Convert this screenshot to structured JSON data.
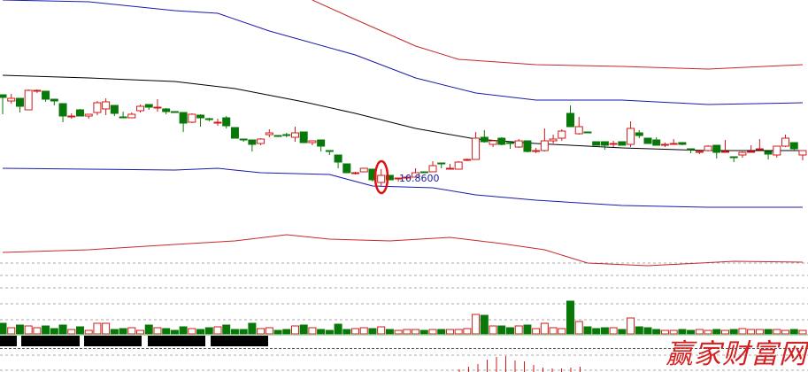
{
  "chart_data": {
    "type": "candlestick",
    "title": "",
    "price_annotation": {
      "label": "10.8600",
      "candle_index": 44,
      "highlight": "red-ellipse"
    },
    "colors": {
      "up": "#d01818",
      "down": "#087808",
      "upper_outer_band": "#c82828",
      "upper_inner_band": "#1a1aa8",
      "middle_line": "#000000",
      "lower_inner_band": "#1a1aa8",
      "lower_outer_band": "#c82828",
      "annotation_text": "#2020a0"
    },
    "candles_ohlc": [
      [
        11.82,
        11.79,
        11.82,
        11.6
      ],
      [
        11.75,
        11.78,
        11.83,
        11.72
      ],
      [
        11.78,
        11.69,
        11.78,
        11.62
      ],
      [
        11.65,
        11.87,
        11.88,
        11.65
      ],
      [
        11.86,
        11.87,
        11.88,
        11.84
      ],
      [
        11.86,
        11.77,
        11.86,
        11.74
      ],
      [
        11.77,
        11.75,
        11.77,
        11.7
      ],
      [
        11.72,
        11.58,
        11.72,
        11.51
      ],
      [
        11.57,
        11.58,
        11.61,
        11.55
      ],
      [
        11.65,
        11.58,
        11.66,
        11.58
      ],
      [
        11.58,
        11.6,
        11.6,
        11.55
      ],
      [
        11.62,
        11.73,
        11.75,
        11.59
      ],
      [
        11.66,
        11.74,
        11.78,
        11.59
      ],
      [
        11.7,
        11.61,
        11.7,
        11.58
      ],
      [
        11.57,
        11.56,
        11.63,
        11.56
      ],
      [
        11.56,
        11.6,
        11.62,
        11.56
      ],
      [
        11.64,
        11.69,
        11.71,
        11.62
      ],
      [
        11.71,
        11.68,
        11.71,
        11.65
      ],
      [
        11.67,
        11.68,
        11.77,
        11.63
      ],
      [
        11.66,
        11.63,
        11.67,
        11.6
      ],
      [
        11.63,
        11.62,
        11.63,
        11.62
      ],
      [
        11.62,
        11.5,
        11.62,
        11.4
      ],
      [
        11.51,
        11.6,
        11.61,
        11.5
      ],
      [
        11.59,
        11.56,
        11.6,
        11.46
      ],
      [
        11.55,
        11.54,
        11.56,
        11.52
      ],
      [
        11.5,
        11.51,
        11.55,
        11.47
      ],
      [
        11.56,
        11.47,
        11.58,
        11.44
      ],
      [
        11.45,
        11.33,
        11.45,
        11.33
      ],
      [
        11.32,
        11.31,
        11.32,
        11.29
      ],
      [
        11.31,
        11.26,
        11.31,
        11.18
      ],
      [
        11.27,
        11.32,
        11.33,
        11.25
      ],
      [
        11.37,
        11.39,
        11.43,
        11.34
      ],
      [
        11.36,
        11.35,
        11.36,
        11.35
      ],
      [
        11.37,
        11.36,
        11.39,
        11.34
      ],
      [
        11.34,
        11.39,
        11.46,
        11.29
      ],
      [
        11.4,
        11.28,
        11.4,
        11.28
      ],
      [
        11.28,
        11.3,
        11.3,
        11.25
      ],
      [
        11.31,
        11.24,
        11.31,
        11.18
      ],
      [
        11.19,
        11.18,
        11.19,
        11.14
      ],
      [
        11.14,
        11.06,
        11.14,
        10.99
      ],
      [
        11.04,
        10.94,
        11.04,
        10.94
      ],
      [
        10.93,
        10.94,
        10.95,
        10.92
      ],
      [
        10.95,
        10.99,
        10.99,
        10.95
      ],
      [
        10.98,
        10.86,
        10.98,
        10.84
      ],
      [
        10.83,
        10.91,
        10.98,
        10.79
      ],
      [
        10.91,
        10.86,
        10.91,
        10.86
      ],
      [
        10.87,
        10.88,
        10.88,
        10.84
      ],
      [
        10.88,
        10.89,
        10.91,
        10.86
      ],
      [
        10.89,
        10.94,
        10.99,
        10.89
      ],
      [
        10.95,
        10.94,
        10.95,
        10.94
      ],
      [
        10.95,
        11.02,
        11.07,
        10.95
      ],
      [
        11.05,
        11.04,
        11.05,
        10.99
      ],
      [
        10.98,
        10.99,
        11.04,
        10.98
      ],
      [
        10.98,
        11.06,
        11.07,
        10.98
      ],
      [
        11.08,
        11.09,
        11.1,
        11.07
      ],
      [
        11.09,
        11.33,
        11.4,
        11.09
      ],
      [
        11.34,
        11.29,
        11.42,
        11.28
      ],
      [
        11.26,
        11.3,
        11.31,
        11.23
      ],
      [
        11.33,
        11.26,
        11.34,
        11.25
      ],
      [
        11.28,
        11.27,
        11.29,
        11.21
      ],
      [
        11.23,
        11.3,
        11.32,
        11.22
      ],
      [
        11.3,
        11.18,
        11.3,
        11.17
      ],
      [
        11.18,
        11.19,
        11.22,
        11.16
      ],
      [
        11.19,
        11.3,
        11.44,
        11.18
      ],
      [
        11.3,
        11.32,
        11.37,
        11.27
      ],
      [
        11.33,
        11.41,
        11.43,
        11.3
      ],
      [
        11.61,
        11.46,
        11.7,
        11.46
      ],
      [
        11.38,
        11.46,
        11.57,
        11.37
      ],
      [
        11.4,
        11.39,
        11.4,
        11.39
      ],
      [
        11.29,
        11.25,
        11.29,
        11.25
      ],
      [
        11.29,
        11.25,
        11.29,
        11.2
      ],
      [
        11.26,
        11.27,
        11.3,
        11.23
      ],
      [
        11.29,
        11.25,
        11.29,
        11.25
      ],
      [
        11.26,
        11.44,
        11.52,
        11.23
      ],
      [
        11.39,
        11.36,
        11.42,
        11.33
      ],
      [
        11.33,
        11.27,
        11.33,
        11.27
      ],
      [
        11.31,
        11.25,
        11.34,
        11.25
      ],
      [
        11.25,
        11.26,
        11.28,
        11.23
      ],
      [
        11.26,
        11.27,
        11.32,
        11.26
      ],
      [
        11.28,
        11.26,
        11.28,
        11.25
      ],
      [
        11.21,
        11.2,
        11.21,
        11.16
      ],
      [
        11.17,
        11.18,
        11.19,
        11.15
      ],
      [
        11.19,
        11.24,
        11.25,
        11.18
      ],
      [
        11.25,
        11.17,
        11.25,
        11.1
      ],
      [
        11.17,
        11.18,
        11.31,
        11.17
      ],
      [
        11.12,
        11.11,
        11.12,
        11.06
      ],
      [
        11.14,
        11.17,
        11.18,
        11.11
      ],
      [
        11.17,
        11.18,
        11.25,
        11.17
      ],
      [
        11.2,
        11.21,
        11.32,
        11.2
      ],
      [
        11.18,
        11.15,
        11.18,
        11.09
      ],
      [
        11.14,
        11.24,
        11.24,
        11.11
      ],
      [
        11.24,
        11.33,
        11.37,
        11.23
      ],
      [
        11.28,
        11.21,
        11.28,
        11.19
      ],
      [
        11.14,
        11.19,
        11.19,
        11.08
      ]
    ],
    "volumes": [
      12,
      7,
      10,
      9,
      7,
      9,
      6,
      10,
      5,
      8,
      4,
      12,
      12,
      5,
      6,
      7,
      4,
      10,
      7,
      6,
      4,
      8,
      6,
      5,
      7,
      8,
      10,
      5,
      5,
      12,
      6,
      7,
      4,
      5,
      9,
      10,
      7,
      5,
      4,
      11,
      5,
      6,
      7,
      6,
      8,
      5,
      4,
      5,
      5,
      4,
      5,
      5,
      5,
      5,
      6,
      22,
      21,
      9,
      9,
      7,
      9,
      10,
      6,
      12,
      7,
      6,
      37,
      14,
      8,
      6,
      7,
      7,
      5,
      18,
      8,
      7,
      5,
      4,
      4,
      5,
      4,
      5,
      4,
      5,
      4,
      5,
      6,
      5,
      5,
      5,
      5,
      4,
      5,
      4
    ],
    "bands": [
      {
        "key": "upper_outer",
        "color": "#c82828",
        "points": [
          [
            36,
            12.89
          ],
          [
            41,
            12.67
          ],
          [
            48,
            12.37
          ],
          [
            53,
            12.22
          ],
          [
            62,
            12.16
          ],
          [
            72,
            12.14
          ],
          [
            82,
            12.11
          ],
          [
            93,
            12.16
          ]
        ]
      },
      {
        "key": "upper_inner",
        "color": "#1a1aa8",
        "points": [
          [
            0,
            12.89
          ],
          [
            10,
            12.87
          ],
          [
            20,
            12.77
          ],
          [
            25,
            12.74
          ],
          [
            31,
            12.54
          ],
          [
            41,
            12.27
          ],
          [
            48,
            12.01
          ],
          [
            55,
            11.84
          ],
          [
            62,
            11.76
          ],
          [
            72,
            11.76
          ],
          [
            82,
            11.71
          ],
          [
            93,
            11.73
          ]
        ]
      },
      {
        "key": "middle",
        "color": "#000000",
        "points": [
          [
            0,
            12.04
          ],
          [
            10,
            12.01
          ],
          [
            20,
            11.97
          ],
          [
            27,
            11.89
          ],
          [
            35,
            11.74
          ],
          [
            41,
            11.61
          ],
          [
            48,
            11.44
          ],
          [
            55,
            11.32
          ],
          [
            62,
            11.27
          ],
          [
            72,
            11.22
          ],
          [
            82,
            11.19
          ],
          [
            93,
            11.19
          ]
        ]
      },
      {
        "key": "lower_inner",
        "color": "#1a1aa8",
        "points": [
          [
            0,
            10.99
          ],
          [
            10,
            10.98
          ],
          [
            20,
            10.97
          ],
          [
            25,
            10.99
          ],
          [
            30,
            10.94
          ],
          [
            38,
            10.92
          ],
          [
            43,
            10.79
          ],
          [
            50,
            10.77
          ],
          [
            55,
            10.69
          ],
          [
            62,
            10.63
          ],
          [
            72,
            10.57
          ],
          [
            82,
            10.55
          ],
          [
            93,
            10.55
          ]
        ]
      },
      {
        "key": "lower_outer",
        "color": "#c82828",
        "points": [
          [
            0,
            10.04
          ],
          [
            10,
            10.07
          ],
          [
            20,
            10.13
          ],
          [
            27,
            10.17
          ],
          [
            33,
            10.24
          ],
          [
            38,
            10.19
          ],
          [
            45,
            10.17
          ],
          [
            52,
            10.21
          ],
          [
            58,
            10.14
          ],
          [
            63,
            10.07
          ],
          [
            68,
            9.92
          ],
          [
            75,
            9.89
          ],
          [
            85,
            9.94
          ],
          [
            93,
            9.93
          ]
        ]
      }
    ],
    "lower_indicator_spikes": [
      3,
      6,
      9,
      14,
      17,
      18,
      13,
      12,
      8,
      5,
      4,
      4,
      5,
      6
    ]
  },
  "watermark": "赢家财富网"
}
